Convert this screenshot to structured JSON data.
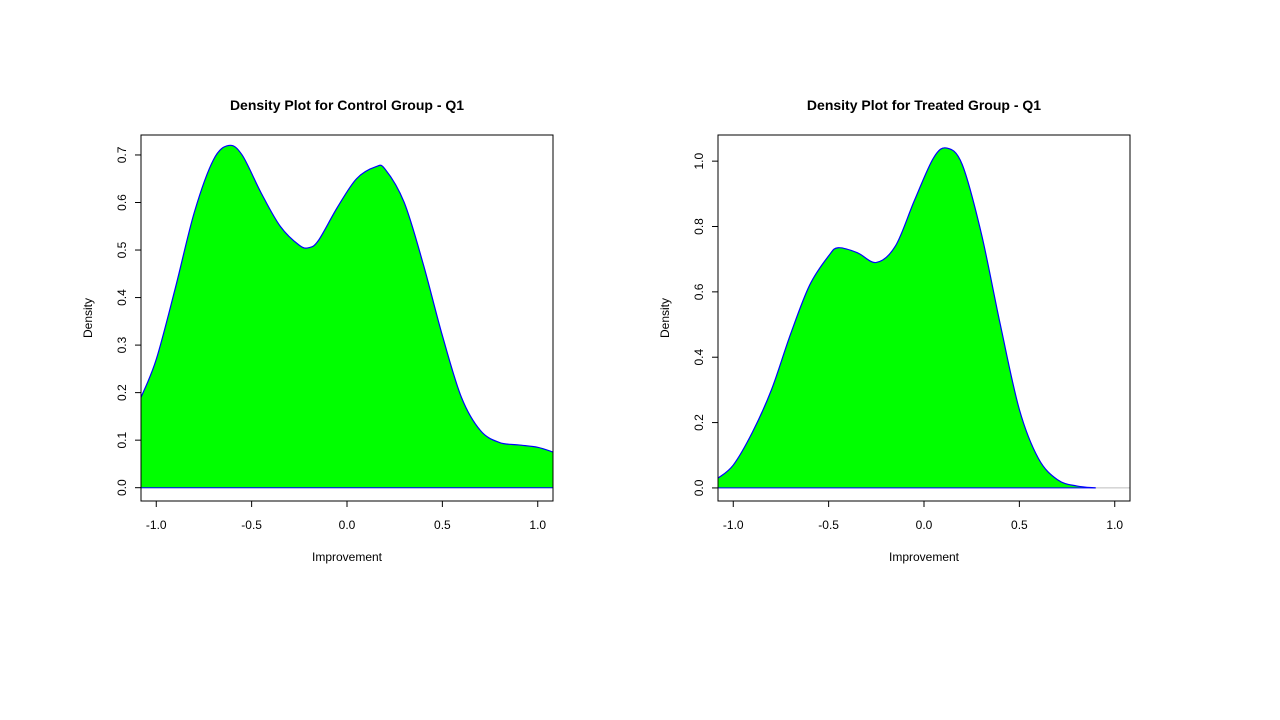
{
  "colors": {
    "fill": "#00ff00",
    "line": "#0000ff",
    "frame": "#000000",
    "baseline": "#bebebe"
  },
  "chart_data": [
    {
      "type": "area",
      "title": "Density Plot for Control Group - Q1",
      "xlabel": "Improvement",
      "ylabel": "Density",
      "xlim": [
        -1.08,
        1.08
      ],
      "ylim": [
        -0.028,
        0.742
      ],
      "xticks": [
        -1.0,
        -0.5,
        0.0,
        0.5,
        1.0
      ],
      "xtick_labels": [
        "-1.0",
        "-0.5",
        "0.0",
        "0.5",
        "1.0"
      ],
      "yticks": [
        0.0,
        0.1,
        0.2,
        0.3,
        0.4,
        0.5,
        0.6,
        0.7
      ],
      "ytick_labels": [
        "0.0",
        "0.1",
        "0.2",
        "0.3",
        "0.4",
        "0.5",
        "0.6",
        "0.7"
      ],
      "grid": false,
      "x": [
        -1.08,
        -1.0,
        -0.9,
        -0.8,
        -0.7,
        -0.62,
        -0.55,
        -0.45,
        -0.35,
        -0.25,
        -0.2,
        -0.15,
        -0.05,
        0.05,
        0.15,
        0.2,
        0.3,
        0.4,
        0.5,
        0.6,
        0.7,
        0.8,
        0.9,
        1.0,
        1.08
      ],
      "y": [
        0.19,
        0.27,
        0.42,
        0.58,
        0.69,
        0.72,
        0.7,
        0.62,
        0.55,
        0.51,
        0.505,
        0.52,
        0.59,
        0.65,
        0.675,
        0.67,
        0.6,
        0.47,
        0.32,
        0.19,
        0.12,
        0.095,
        0.09,
        0.085,
        0.075
      ]
    },
    {
      "type": "area",
      "title": "Density Plot for Treated Group - Q1",
      "xlabel": "Improvement",
      "ylabel": "Density",
      "xlim": [
        -1.08,
        1.08
      ],
      "ylim": [
        -0.04,
        1.08
      ],
      "xticks": [
        -1.0,
        -0.5,
        0.0,
        0.5,
        1.0
      ],
      "xtick_labels": [
        "-1.0",
        "-0.5",
        "0.0",
        "0.5",
        "1.0"
      ],
      "yticks": [
        0.0,
        0.2,
        0.4,
        0.6,
        0.8,
        1.0
      ],
      "ytick_labels": [
        "0.0",
        "0.2",
        "0.4",
        "0.6",
        "0.8",
        "1.0"
      ],
      "grid": false,
      "x": [
        -1.08,
        -1.0,
        -0.9,
        -0.8,
        -0.7,
        -0.6,
        -0.5,
        -0.45,
        -0.35,
        -0.25,
        -0.15,
        -0.05,
        0.05,
        0.12,
        0.2,
        0.3,
        0.4,
        0.5,
        0.6,
        0.7,
        0.8,
        0.9
      ],
      "y": [
        0.03,
        0.07,
        0.17,
        0.3,
        0.47,
        0.62,
        0.71,
        0.735,
        0.72,
        0.69,
        0.74,
        0.88,
        1.01,
        1.04,
        0.99,
        0.78,
        0.5,
        0.24,
        0.09,
        0.025,
        0.006,
        0.0
      ]
    }
  ]
}
